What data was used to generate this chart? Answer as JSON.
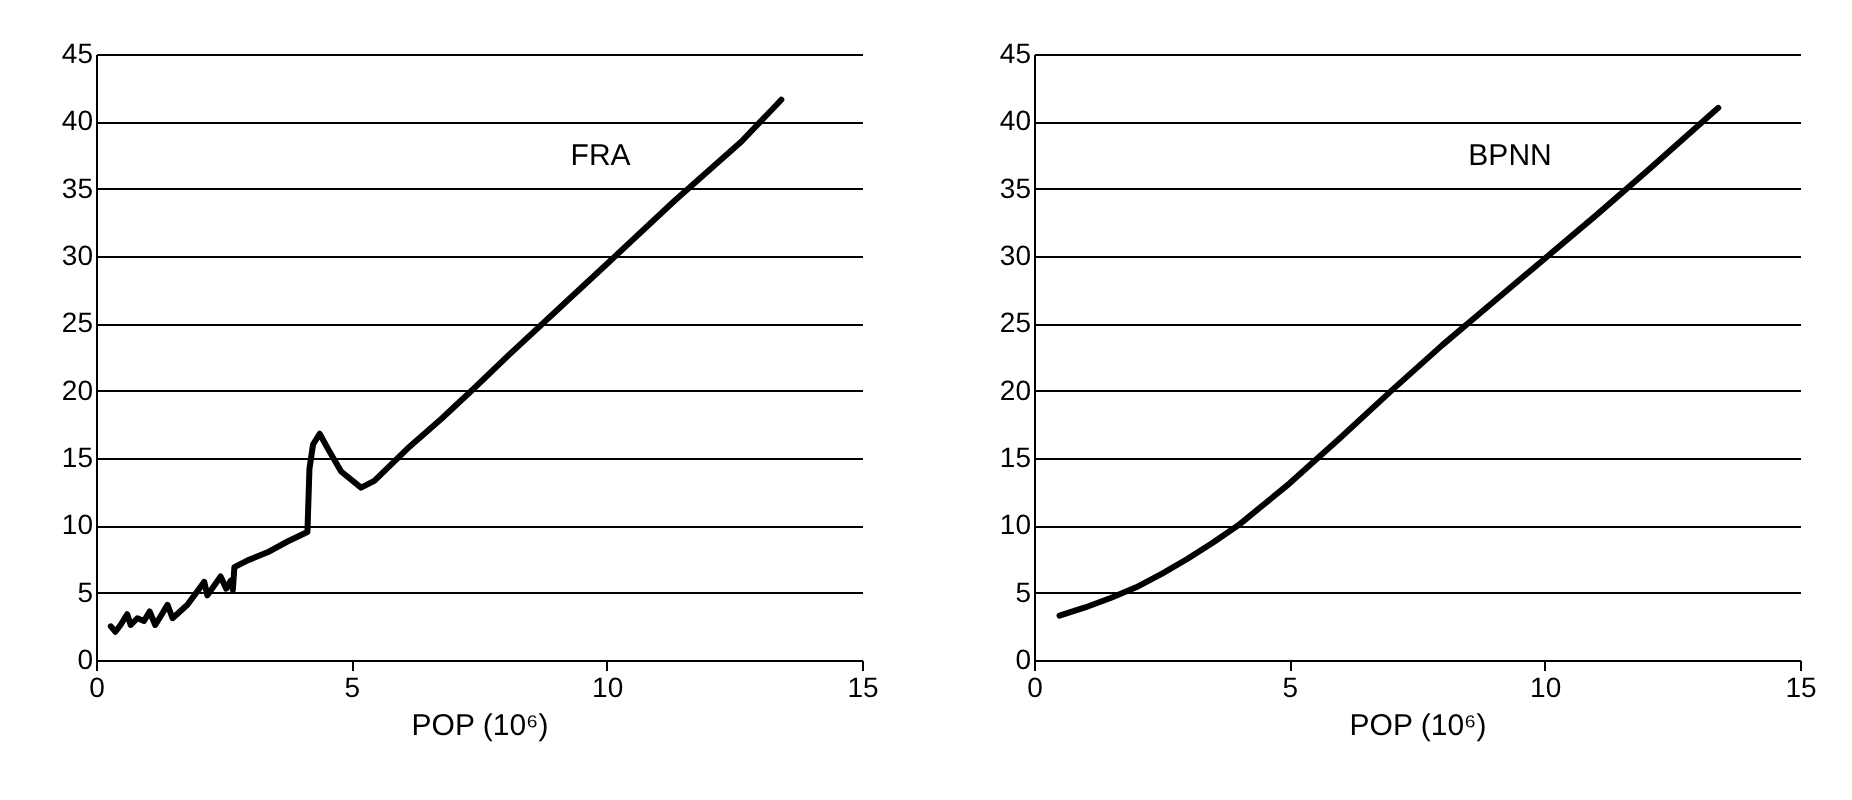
{
  "chart_data": [
    {
      "type": "line",
      "xlabel": "POP (10⁶)",
      "xlim": [
        0,
        15
      ],
      "xticks": [
        0,
        5,
        10,
        15
      ],
      "ylim": [
        0,
        45
      ],
      "yticks": [
        0,
        5,
        10,
        15,
        20,
        25,
        30,
        35,
        40,
        45
      ],
      "grid": "y",
      "legend": false,
      "series": [
        {
          "name": "FRA",
          "color": "#000000",
          "x": [
            0.29,
            0.38,
            0.48,
            0.61,
            0.68,
            0.81,
            0.94,
            1.05,
            1.16,
            1.29,
            1.4,
            1.5,
            1.79,
            2.12,
            2.18,
            2.44,
            2.55,
            2.64,
            2.68,
            2.71,
            2.97,
            3.36,
            3.75,
            4.14,
            4.18,
            4.25,
            4.38,
            4.54,
            4.8,
            5.19,
            5.45,
            6.1,
            6.76,
            7.41,
            8.07,
            8.98,
            10.03,
            11.33,
            12.64,
            13.42
          ],
          "values": [
            2.5,
            2.1,
            2.6,
            3.4,
            2.6,
            3.1,
            2.9,
            3.6,
            2.6,
            3.4,
            4.1,
            3.1,
            4.1,
            5.8,
            4.8,
            6.2,
            5.3,
            5.9,
            5.2,
            6.9,
            7.4,
            8.0,
            8.8,
            9.5,
            14.2,
            16.0,
            16.8,
            15.7,
            14.0,
            12.8,
            13.3,
            15.7,
            17.9,
            20.2,
            22.6,
            25.8,
            29.5,
            34.1,
            38.5,
            41.6
          ]
        }
      ]
    },
    {
      "type": "line",
      "xlabel": "POP (10⁶)",
      "xlim": [
        0,
        15
      ],
      "xticks": [
        0,
        5,
        10,
        15
      ],
      "ylim": [
        0,
        45
      ],
      "yticks": [
        0,
        5,
        10,
        15,
        20,
        25,
        30,
        35,
        40,
        45
      ],
      "grid": "y",
      "legend": false,
      "series": [
        {
          "name": "BPNN",
          "color": "#000000",
          "x": [
            0.5,
            1,
            1.5,
            2,
            2.5,
            3,
            3.5,
            4,
            5,
            6,
            7,
            8,
            9,
            10,
            11,
            12,
            13.4
          ],
          "values": [
            3.3,
            3.9,
            4.6,
            5.4,
            6.4,
            7.5,
            8.7,
            10,
            13.1,
            16.5,
            20,
            23.4,
            26.6,
            29.8,
            33,
            36.3,
            41
          ]
        }
      ]
    }
  ]
}
